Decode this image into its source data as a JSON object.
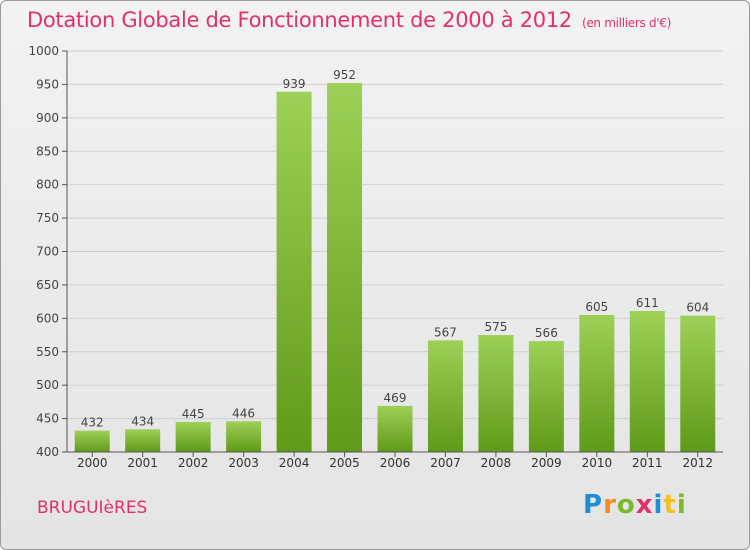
{
  "title": "Dotation Globale de Fonctionnement de 2000 à 2012",
  "subtitle": "(en milliers d'€)",
  "commune": "BRUGUIèRES",
  "logo": {
    "letters": [
      "P",
      "r",
      "o",
      "x",
      "i",
      "t",
      "i"
    ],
    "colors": [
      "#1e8fd6",
      "#f28c1e",
      "#7ab82e",
      "#e0306e",
      "#1e8fd6",
      "#f2c21e",
      "#7ab82e"
    ]
  },
  "colors": {
    "title": "#e0306e",
    "bar_top": "#9ed057",
    "bar_bottom": "#5f9a18"
  },
  "chart_data": {
    "type": "bar",
    "categories": [
      "2000",
      "2001",
      "2002",
      "2003",
      "2004",
      "2005",
      "2006",
      "2007",
      "2008",
      "2009",
      "2010",
      "2011",
      "2012"
    ],
    "values": [
      432,
      434,
      445,
      446,
      939,
      952,
      469,
      567,
      575,
      566,
      605,
      611,
      604
    ],
    "ylim": [
      400,
      1000
    ],
    "yticks": [
      400,
      450,
      500,
      550,
      600,
      650,
      700,
      750,
      800,
      850,
      900,
      950,
      1000
    ],
    "grid": true,
    "title": "Dotation Globale de Fonctionnement de 2000 à 2012",
    "subtitle": "(en milliers d'€)",
    "xlabel": "",
    "ylabel": ""
  }
}
